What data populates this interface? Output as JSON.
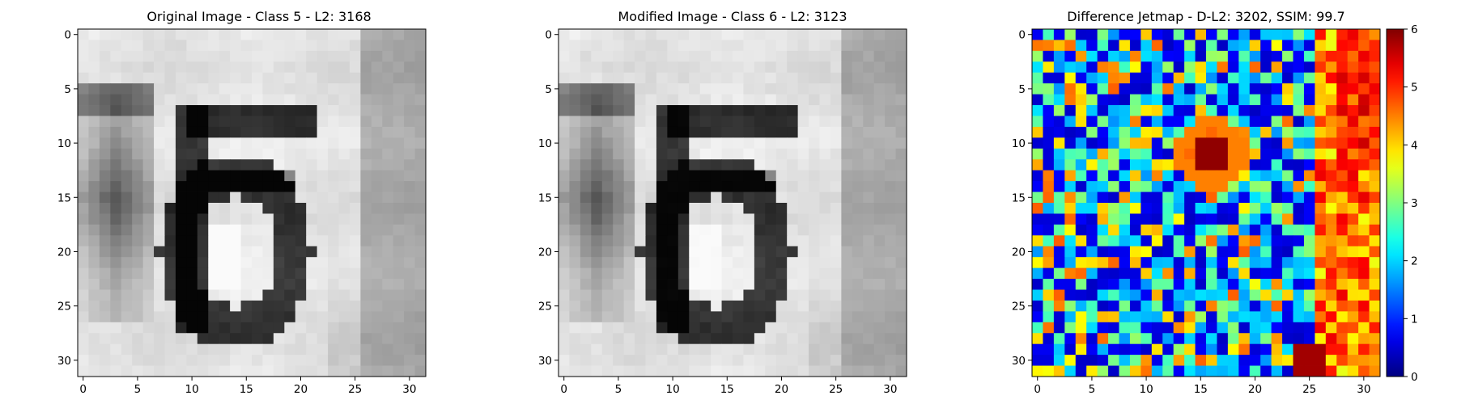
{
  "chart_data": [
    {
      "type": "heatmap",
      "title": "Original Image - Class 5 - L2: 3168",
      "title_color": "#000000",
      "colormap": "gray",
      "pattern": "digit-56",
      "size": [
        32,
        32
      ],
      "xlim": [
        -0.5,
        31.5
      ],
      "ylim": [
        31.5,
        -0.5
      ],
      "x_ticks": [
        0,
        5,
        10,
        15,
        20,
        25,
        30
      ],
      "y_ticks": [
        0,
        5,
        10,
        15,
        20,
        25,
        30
      ],
      "x_tick_labels": [
        "0",
        "5",
        "10",
        "15",
        "20",
        "25",
        "30"
      ],
      "y_tick_labels": [
        "0",
        "5",
        "10",
        "15",
        "20",
        "25",
        "30"
      ]
    },
    {
      "type": "heatmap",
      "title": "Modified Image - Class 6 - L2: 3123",
      "title_color": "#ff0000",
      "colormap": "gray",
      "pattern": "digit-56",
      "size": [
        32,
        32
      ],
      "xlim": [
        -0.5,
        31.5
      ],
      "ylim": [
        31.5,
        -0.5
      ],
      "x_ticks": [
        0,
        5,
        10,
        15,
        20,
        25,
        30
      ],
      "y_ticks": [
        0,
        5,
        10,
        15,
        20,
        25,
        30
      ],
      "x_tick_labels": [
        "0",
        "5",
        "10",
        "15",
        "20",
        "25",
        "30"
      ],
      "y_tick_labels": [
        "0",
        "5",
        "10",
        "15",
        "20",
        "25",
        "30"
      ]
    },
    {
      "type": "heatmap",
      "title": "Difference Jetmap - D-L2: 3202, SSIM: 99.7",
      "title_color": "#000000",
      "colormap": "jet",
      "pattern": "difference",
      "size": [
        32,
        32
      ],
      "xlim": [
        -0.5,
        31.5
      ],
      "ylim": [
        31.5,
        -0.5
      ],
      "x_ticks": [
        0,
        5,
        10,
        15,
        20,
        25,
        30
      ],
      "y_ticks": [
        0,
        5,
        10,
        15,
        20,
        25,
        30
      ],
      "x_tick_labels": [
        "0",
        "5",
        "10",
        "15",
        "20",
        "25",
        "30"
      ],
      "y_tick_labels": [
        "0",
        "5",
        "10",
        "15",
        "20",
        "25",
        "30"
      ],
      "colorbar": {
        "range": [
          0,
          6
        ],
        "ticks": [
          0,
          1,
          2,
          3,
          4,
          5,
          6
        ],
        "tick_labels": [
          "0",
          "1",
          "2",
          "3",
          "4",
          "5",
          "6"
        ]
      }
    }
  ]
}
